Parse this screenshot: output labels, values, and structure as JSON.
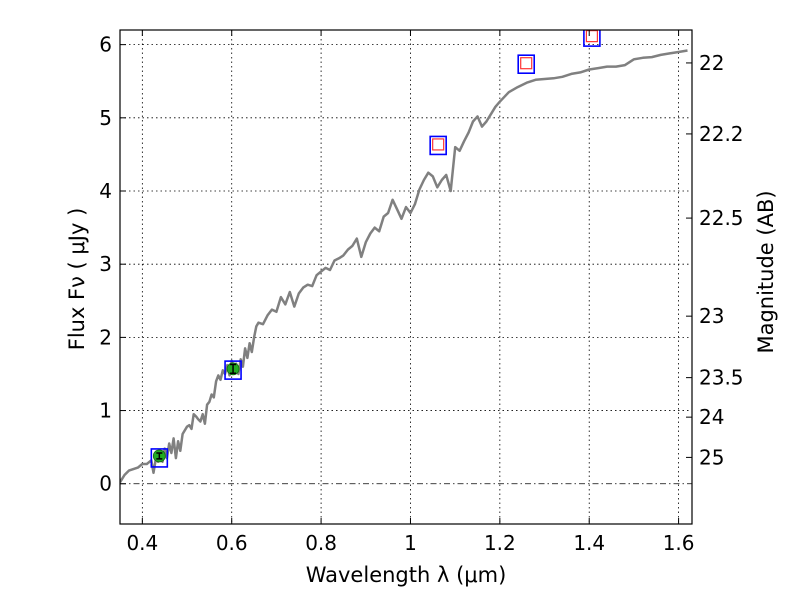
{
  "chart_data": {
    "type": "line",
    "xlabel": "Wavelength  λ (μm)",
    "ylabel": "Flux  Fν  ( μJy )",
    "y2label": "Magnitude (AB)",
    "xlim": [
      0.35,
      1.63
    ],
    "ylim": [
      -0.55,
      6.2
    ],
    "grid": true,
    "x_ticks": [
      0.4,
      0.6,
      0.8,
      1.0,
      1.2,
      1.4,
      1.6
    ],
    "x_tick_labels": [
      "0.4",
      "0.6",
      "0.8",
      "1",
      "1.2",
      "1.4",
      "1.6"
    ],
    "y_ticks": [
      0,
      1,
      2,
      3,
      4,
      5,
      6
    ],
    "y_tick_labels": [
      "0",
      "1",
      "2",
      "3",
      "4",
      "5",
      "6"
    ],
    "mag_ticks": [
      {
        "label": "22",
        "flux": 5.75
      },
      {
        "label": "22.2",
        "flux": 4.78
      },
      {
        "label": "22.5",
        "flux": 3.63
      },
      {
        "label": "23",
        "flux": 2.29
      },
      {
        "label": "23.5",
        "flux": 1.45
      },
      {
        "label": "24",
        "flux": 0.91
      },
      {
        "label": "25",
        "flux": 0.36
      }
    ],
    "series": [
      {
        "kind": "model_spectrum",
        "color": "#808080",
        "x": [
          0.35,
          0.36,
          0.37,
          0.38,
          0.39,
          0.4,
          0.41,
          0.42,
          0.425,
          0.43,
          0.435,
          0.44,
          0.445,
          0.45,
          0.455,
          0.46,
          0.465,
          0.47,
          0.475,
          0.48,
          0.485,
          0.49,
          0.5,
          0.505,
          0.51,
          0.515,
          0.52,
          0.525,
          0.53,
          0.535,
          0.54,
          0.545,
          0.55,
          0.555,
          0.56,
          0.565,
          0.57,
          0.575,
          0.58,
          0.585,
          0.59,
          0.595,
          0.6,
          0.605,
          0.61,
          0.615,
          0.62,
          0.625,
          0.63,
          0.635,
          0.64,
          0.645,
          0.65,
          0.655,
          0.66,
          0.67,
          0.68,
          0.69,
          0.7,
          0.71,
          0.72,
          0.73,
          0.74,
          0.75,
          0.76,
          0.77,
          0.78,
          0.79,
          0.8,
          0.81,
          0.82,
          0.83,
          0.84,
          0.85,
          0.86,
          0.87,
          0.88,
          0.89,
          0.9,
          0.91,
          0.92,
          0.93,
          0.94,
          0.95,
          0.96,
          0.97,
          0.98,
          0.99,
          1.0,
          1.01,
          1.02,
          1.03,
          1.04,
          1.05,
          1.06,
          1.07,
          1.08,
          1.09,
          1.1,
          1.11,
          1.12,
          1.13,
          1.14,
          1.15,
          1.16,
          1.17,
          1.18,
          1.19,
          1.2,
          1.22,
          1.24,
          1.26,
          1.28,
          1.3,
          1.32,
          1.34,
          1.36,
          1.38,
          1.4,
          1.42,
          1.44,
          1.46,
          1.48,
          1.5,
          1.52,
          1.54,
          1.56,
          1.58,
          1.6,
          1.62
        ],
        "y": [
          0.02,
          0.12,
          0.18,
          0.2,
          0.22,
          0.27,
          0.27,
          0.32,
          0.15,
          0.34,
          0.3,
          0.45,
          0.3,
          0.48,
          0.35,
          0.55,
          0.42,
          0.62,
          0.35,
          0.58,
          0.45,
          0.68,
          0.78,
          0.8,
          0.75,
          0.95,
          0.92,
          0.88,
          0.85,
          0.95,
          0.82,
          1.08,
          1.12,
          1.22,
          1.18,
          1.4,
          1.48,
          1.42,
          1.55,
          1.5,
          1.62,
          1.48,
          1.68,
          1.58,
          1.64,
          1.5,
          1.7,
          1.6,
          1.85,
          1.72,
          1.92,
          1.8,
          2.0,
          2.15,
          2.2,
          2.18,
          2.3,
          2.38,
          2.35,
          2.55,
          2.45,
          2.62,
          2.42,
          2.6,
          2.68,
          2.72,
          2.7,
          2.85,
          2.9,
          2.95,
          2.92,
          3.05,
          3.08,
          3.12,
          3.2,
          3.25,
          3.35,
          3.1,
          3.3,
          3.42,
          3.5,
          3.45,
          3.65,
          3.7,
          3.88,
          3.75,
          3.62,
          3.78,
          3.7,
          3.82,
          4.02,
          4.15,
          4.25,
          4.2,
          4.05,
          4.15,
          4.22,
          4.0,
          4.6,
          4.55,
          4.68,
          4.8,
          4.95,
          5.02,
          4.88,
          4.95,
          5.05,
          5.15,
          5.22,
          5.35,
          5.42,
          5.48,
          5.52,
          5.53,
          5.54,
          5.56,
          5.6,
          5.62,
          5.66,
          5.68,
          5.7,
          5.7,
          5.72,
          5.8,
          5.82,
          5.83,
          5.86,
          5.88,
          5.9,
          5.92
        ]
      },
      {
        "kind": "model_points",
        "marker": "square",
        "color": "#0000ff",
        "x": [
          0.438,
          0.603,
          1.062,
          1.259,
          1.406
        ],
        "y": [
          0.38,
          1.58,
          4.65,
          5.76,
          6.13
        ]
      },
      {
        "kind": "upper_limits",
        "marker": "square",
        "color": "#ff3333",
        "x": [
          1.062,
          1.259,
          1.406
        ],
        "y": [
          4.65,
          5.76,
          6.13
        ]
      },
      {
        "kind": "observed",
        "marker": "circle",
        "color": "#22aa22",
        "x": [
          0.438,
          0.603
        ],
        "y": [
          0.38,
          1.57
        ],
        "yerr": [
          0.04,
          0.06
        ]
      }
    ]
  }
}
